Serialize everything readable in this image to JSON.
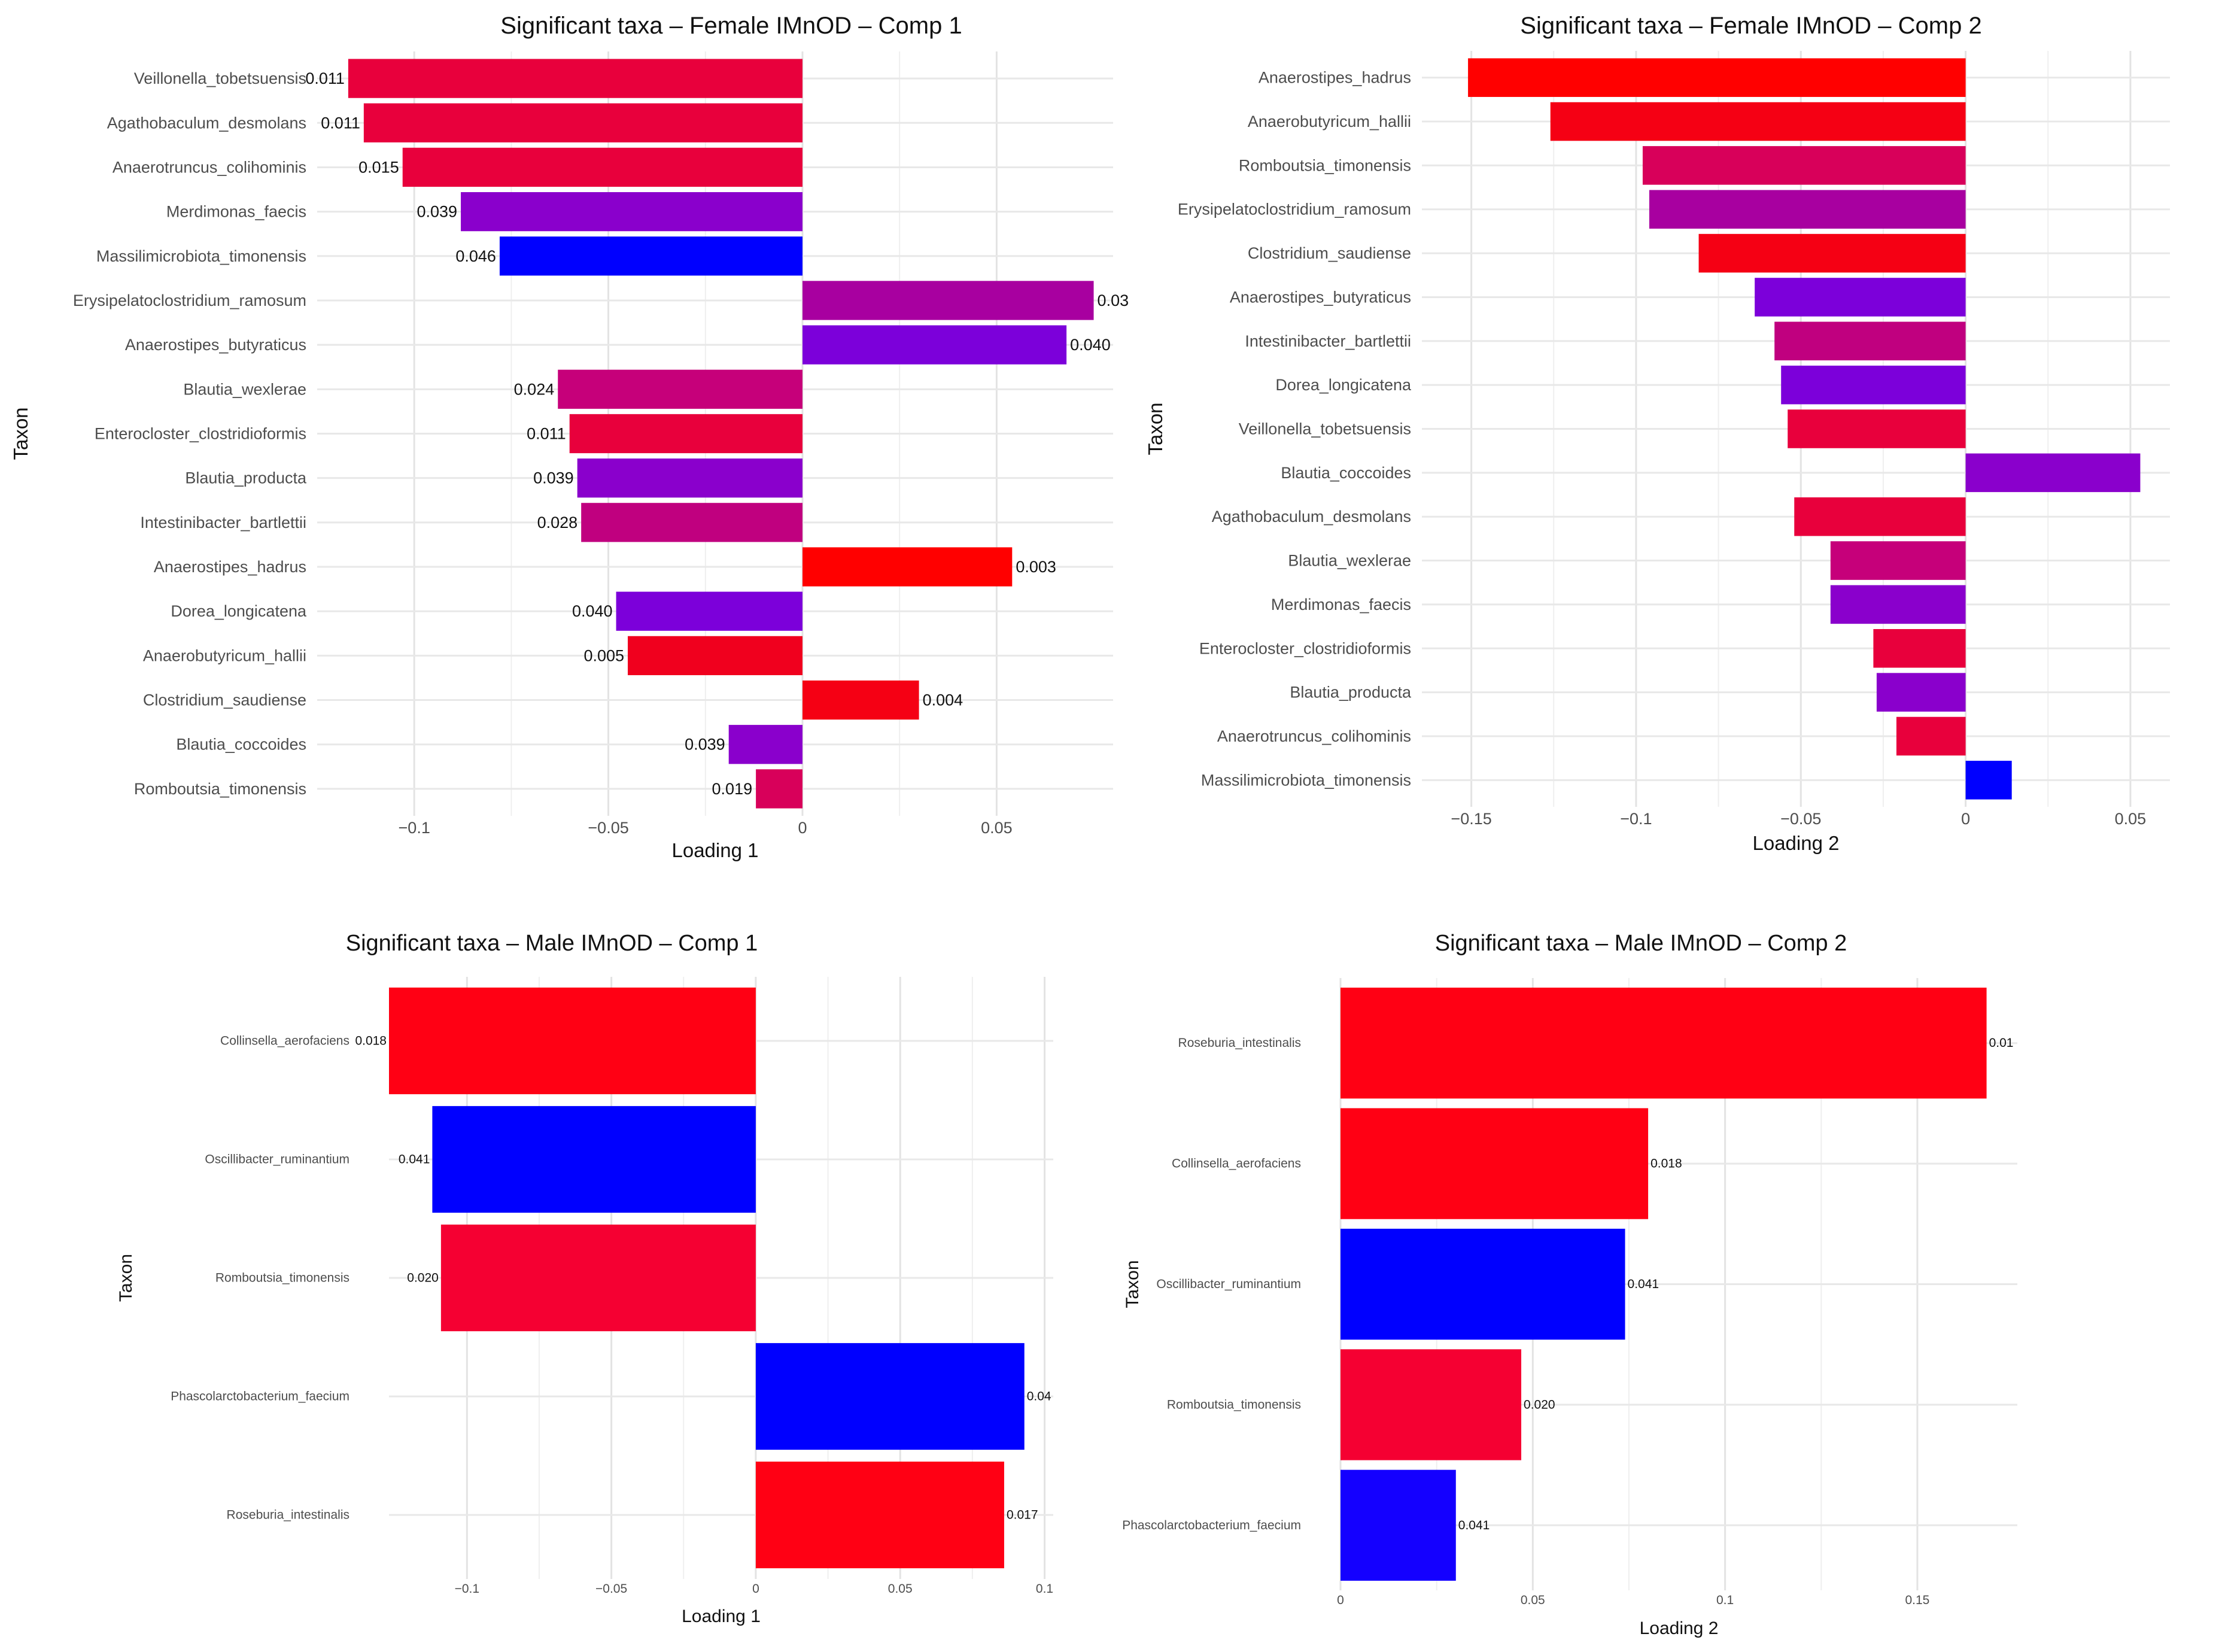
{
  "chart_data": [
    {
      "type": "bar",
      "orientation": "horizontal",
      "title": "Significant taxa – Female IMnOD – Comp 1",
      "xlabel": "Loading 1",
      "ylabel": "Taxon",
      "xlim": [
        -0.125,
        0.08
      ],
      "xticks": [
        -0.1,
        -0.05,
        0,
        0.05
      ],
      "xtick_labels": [
        "−0.1",
        "−0.05",
        "0",
        "0.05"
      ],
      "grid": true,
      "categories": [
        "Veillonella_tobetsuensis",
        "Agathobaculum_desmolans",
        "Anaerotruncus_colihominis",
        "Merdimonas_faecis",
        "Massilimicrobiota_timonensis",
        "Erysipelatoclostridium_ramosum",
        "Anaerostipes_butyraticus",
        "Blautia_wexlerae",
        "Enterocloster_clostridioformis",
        "Blautia_producta",
        "Intestinibacter_bartlettii",
        "Anaerostipes_hadrus",
        "Dorea_longicatena",
        "Anaerobutyricum_hallii",
        "Clostridium_saudiense",
        "Blautia_coccoides",
        "Romboutsia_timonensis"
      ],
      "values": [
        -0.117,
        -0.113,
        -0.103,
        -0.088,
        -0.078,
        0.075,
        0.068,
        -0.063,
        -0.06,
        -0.058,
        -0.057,
        0.054,
        -0.048,
        -0.045,
        0.03,
        -0.019,
        -0.012
      ],
      "labels": [
        "0.011",
        "0.011",
        "0.015",
        "0.039",
        "0.046",
        "0.03",
        "0.040",
        "0.024",
        "0.011",
        "0.039",
        "0.028",
        "0.003",
        "0.040",
        "0.005",
        "0.004",
        "0.039",
        "0.019"
      ],
      "colors": [
        "#e8003c",
        "#e8003c",
        "#e8003c",
        "#8a00cc",
        "#0000ff",
        "#a800a0",
        "#7c00da",
        "#c6007a",
        "#e8003c",
        "#8a00cc",
        "#c0007f",
        "#ff0000",
        "#7c00da",
        "#f0001e",
        "#f50014",
        "#8a00cc",
        "#d8005a"
      ]
    },
    {
      "type": "bar",
      "orientation": "horizontal",
      "title": "Significant taxa – Female IMnOD – Comp 2",
      "xlabel": "Loading 2",
      "ylabel": "Taxon",
      "xlim": [
        -0.165,
        0.062
      ],
      "xticks": [
        -0.15,
        -0.1,
        -0.05,
        0,
        0.05
      ],
      "xtick_labels": [
        "−0.15",
        "−0.1",
        "−0.05",
        "0",
        "0.05"
      ],
      "grid": true,
      "categories": [
        "Anaerostipes_hadrus",
        "Anaerobutyricum_hallii",
        "Romboutsia_timonensis",
        "Erysipelatoclostridium_ramosum",
        "Clostridium_saudiense",
        "Anaerostipes_butyraticus",
        "Intestinibacter_bartlettii",
        "Dorea_longicatena",
        "Veillonella_tobetsuensis",
        "Blautia_coccoides",
        "Agathobaculum_desmolans",
        "Blautia_wexlerae",
        "Merdimonas_faecis",
        "Enterocloster_clostridioformis",
        "Blautia_producta",
        "Anaerotruncus_colihominis",
        "Massilimicrobiota_timonensis"
      ],
      "values": [
        -0.151,
        -0.126,
        -0.098,
        -0.096,
        -0.081,
        -0.064,
        -0.058,
        -0.056,
        -0.054,
        0.053,
        -0.052,
        -0.041,
        -0.041,
        -0.028,
        -0.027,
        -0.021,
        0.014
      ],
      "colors": [
        "#ff0000",
        "#f50014",
        "#d8005a",
        "#a800a0",
        "#f50014",
        "#7c00da",
        "#c0007f",
        "#7c00da",
        "#e8003c",
        "#8a00cc",
        "#e8003c",
        "#c6007a",
        "#8a00cc",
        "#e8003c",
        "#8a00cc",
        "#e8003c",
        "#0000ff"
      ]
    },
    {
      "type": "bar",
      "orientation": "horizontal",
      "title": "Significant taxa – Male IMnOD – Comp 1",
      "xlabel": "Loading 1",
      "ylabel": "Taxon",
      "xlim": [
        -0.127,
        0.103
      ],
      "xticks": [
        -0.1,
        -0.05,
        0,
        0.05,
        0.1
      ],
      "xtick_labels": [
        "−0.1",
        "−0.05",
        "0",
        "0.05",
        "0.1"
      ],
      "grid": true,
      "categories": [
        "Collinsella_aerofaciens",
        "Oscillibacter_ruminantium",
        "Romboutsia_timonensis",
        "Phascolarctobacterium_faecium",
        "Roseburia_intestinalis"
      ],
      "values": [
        -0.127,
        -0.112,
        -0.109,
        0.093,
        0.086
      ],
      "labels": [
        "0.018",
        "0.041",
        "0.020",
        "0.04",
        "0.017"
      ],
      "colors": [
        "#ff0014",
        "#0000ff",
        "#f50032",
        "#0000ff",
        "#ff0014"
      ]
    },
    {
      "type": "bar",
      "orientation": "horizontal",
      "title": "Significant taxa – Male IMnOD – Comp 2",
      "xlabel": "Loading 2",
      "ylabel": "Taxon",
      "xlim": [
        0,
        0.176
      ],
      "xticks": [
        0,
        0.05,
        0.1,
        0.15
      ],
      "xtick_labels": [
        "0",
        "0.05",
        "0.1",
        "0.15"
      ],
      "grid": true,
      "categories": [
        "Roseburia_intestinalis",
        "Collinsella_aerofaciens",
        "Oscillibacter_ruminantium",
        "Romboutsia_timonensis",
        "Phascolarctobacterium_faecium"
      ],
      "values": [
        0.168,
        0.08,
        0.074,
        0.047,
        0.03
      ],
      "labels": [
        "0.01",
        "0.018",
        "0.041",
        "0.020",
        "0.041"
      ],
      "colors": [
        "#ff0014",
        "#ff0014",
        "#0000ff",
        "#f50032",
        "#1400ff"
      ]
    }
  ]
}
